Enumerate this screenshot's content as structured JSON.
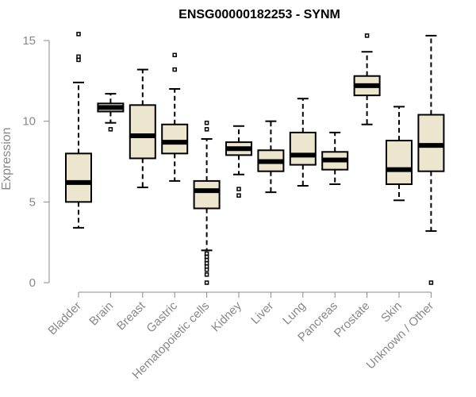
{
  "chart_data": {
    "type": "boxplot",
    "title": "ENSG00000182253 - SYNM",
    "ylabel": "Expression",
    "xlabel": "",
    "ylim": [
      0,
      15.5
    ],
    "yticks": [
      0,
      5,
      10,
      15
    ],
    "categories": [
      "Bladder",
      "Brain",
      "Breast",
      "Gastric",
      "Hematopoietic cells",
      "Kidney",
      "Liver",
      "Lung",
      "Pancreas",
      "Prostate",
      "Skin",
      "Unknown / Other"
    ],
    "boxes": [
      {
        "name": "Bladder",
        "whisker_low": 3.4,
        "q1": 5.0,
        "median": 6.2,
        "q3": 8.0,
        "whisker_high": 12.4,
        "outliers": [
          13.8,
          14.0,
          15.4
        ]
      },
      {
        "name": "Brain",
        "whisker_low": 9.9,
        "q1": 10.6,
        "median": 10.85,
        "q3": 11.1,
        "whisker_high": 11.7,
        "outliers": [
          9.5
        ]
      },
      {
        "name": "Breast",
        "whisker_low": 5.9,
        "q1": 7.7,
        "median": 9.1,
        "q3": 11.0,
        "whisker_high": 13.2,
        "outliers": []
      },
      {
        "name": "Gastric",
        "whisker_low": 6.3,
        "q1": 8.0,
        "median": 8.7,
        "q3": 9.8,
        "whisker_high": 12.0,
        "outliers": [
          13.2,
          14.1
        ]
      },
      {
        "name": "Hematopoietic cells",
        "whisker_low": 2.0,
        "q1": 4.6,
        "median": 5.7,
        "q3": 6.3,
        "whisker_high": 8.9,
        "outliers": [
          9.5,
          9.9,
          1.8,
          1.6,
          1.4,
          1.2,
          1.0,
          0.8,
          0.5,
          0.0
        ]
      },
      {
        "name": "Kidney",
        "whisker_low": 6.7,
        "q1": 7.9,
        "median": 8.3,
        "q3": 8.7,
        "whisker_high": 9.7,
        "outliers": [
          5.8,
          5.4
        ]
      },
      {
        "name": "Liver",
        "whisker_low": 5.6,
        "q1": 6.9,
        "median": 7.5,
        "q3": 8.2,
        "whisker_high": 10.0,
        "outliers": []
      },
      {
        "name": "Lung",
        "whisker_low": 6.0,
        "q1": 7.3,
        "median": 7.9,
        "q3": 9.3,
        "whisker_high": 11.4,
        "outliers": []
      },
      {
        "name": "Pancreas",
        "whisker_low": 6.1,
        "q1": 7.0,
        "median": 7.6,
        "q3": 8.1,
        "whisker_high": 9.3,
        "outliers": []
      },
      {
        "name": "Prostate",
        "whisker_low": 9.8,
        "q1": 11.6,
        "median": 12.2,
        "q3": 12.8,
        "whisker_high": 14.3,
        "outliers": [
          15.3
        ]
      },
      {
        "name": "Skin",
        "whisker_low": 5.1,
        "q1": 6.1,
        "median": 7.0,
        "q3": 8.8,
        "whisker_high": 10.9,
        "outliers": []
      },
      {
        "name": "Unknown / Other",
        "whisker_low": 3.2,
        "q1": 6.9,
        "median": 8.5,
        "q3": 10.4,
        "whisker_high": 15.3,
        "outliers": [
          0.0
        ]
      }
    ],
    "box_fill": "#ede6cf",
    "line_color": "#000000",
    "axis_color": "#888888",
    "grid": false,
    "legend": "none"
  }
}
